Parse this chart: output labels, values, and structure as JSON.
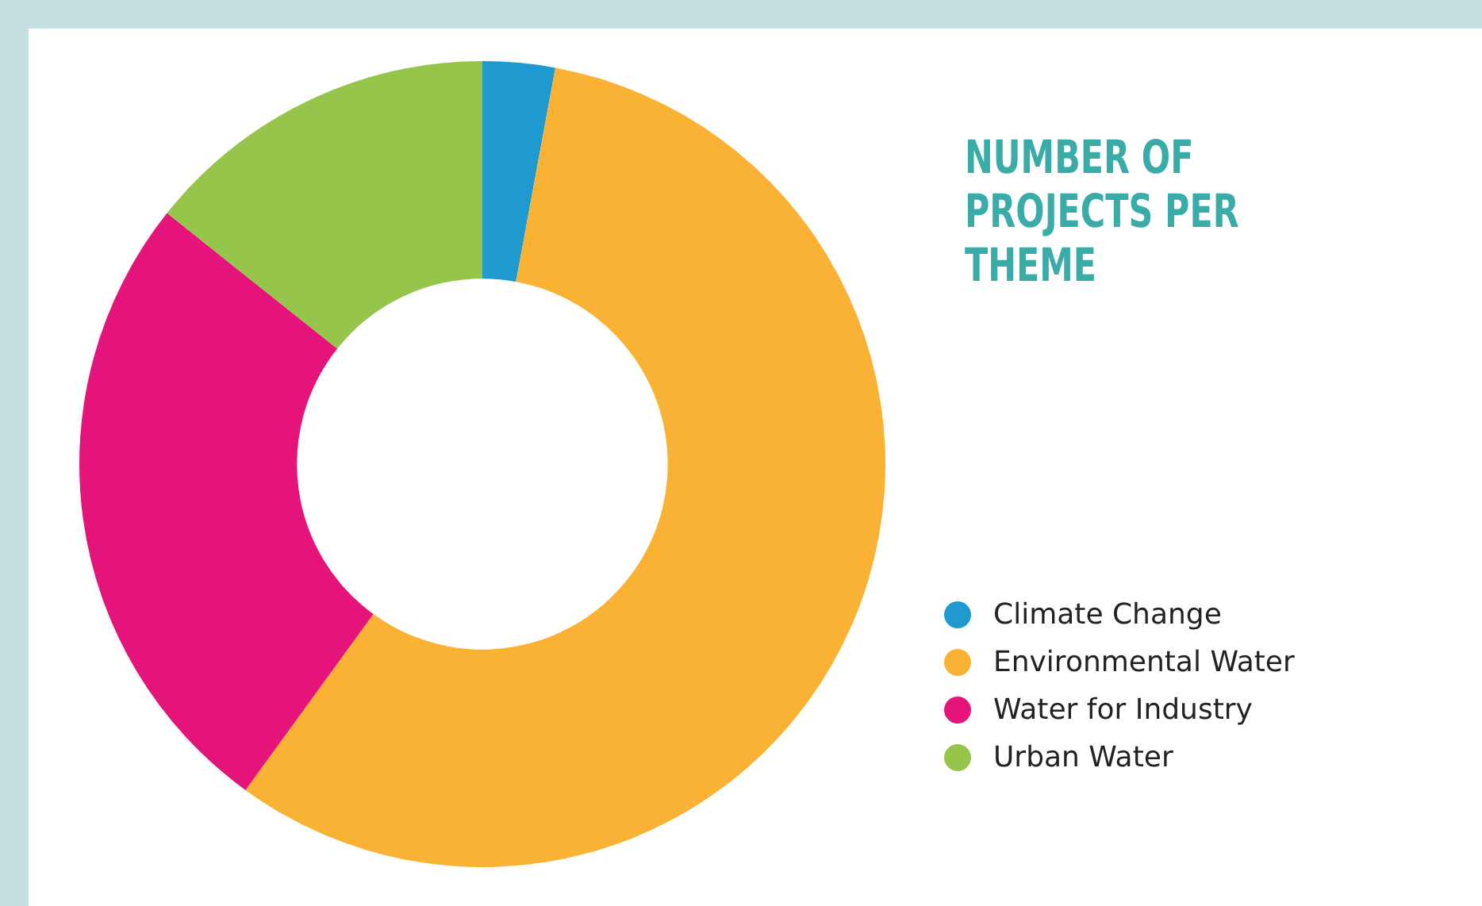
{
  "chart_data": {
    "type": "donut",
    "title": "NUMBER OF PROJECTS PER THEME",
    "categories": [
      "Climate Change",
      "Environmental Water",
      "Water for Industry",
      "Urban Water"
    ],
    "values": [
      2.9,
      57.1,
      25.7,
      14.3
    ],
    "colors": [
      "#1e9ad0",
      "#f9b233",
      "#e5147a",
      "#95c54b"
    ],
    "legend": "right"
  }
}
